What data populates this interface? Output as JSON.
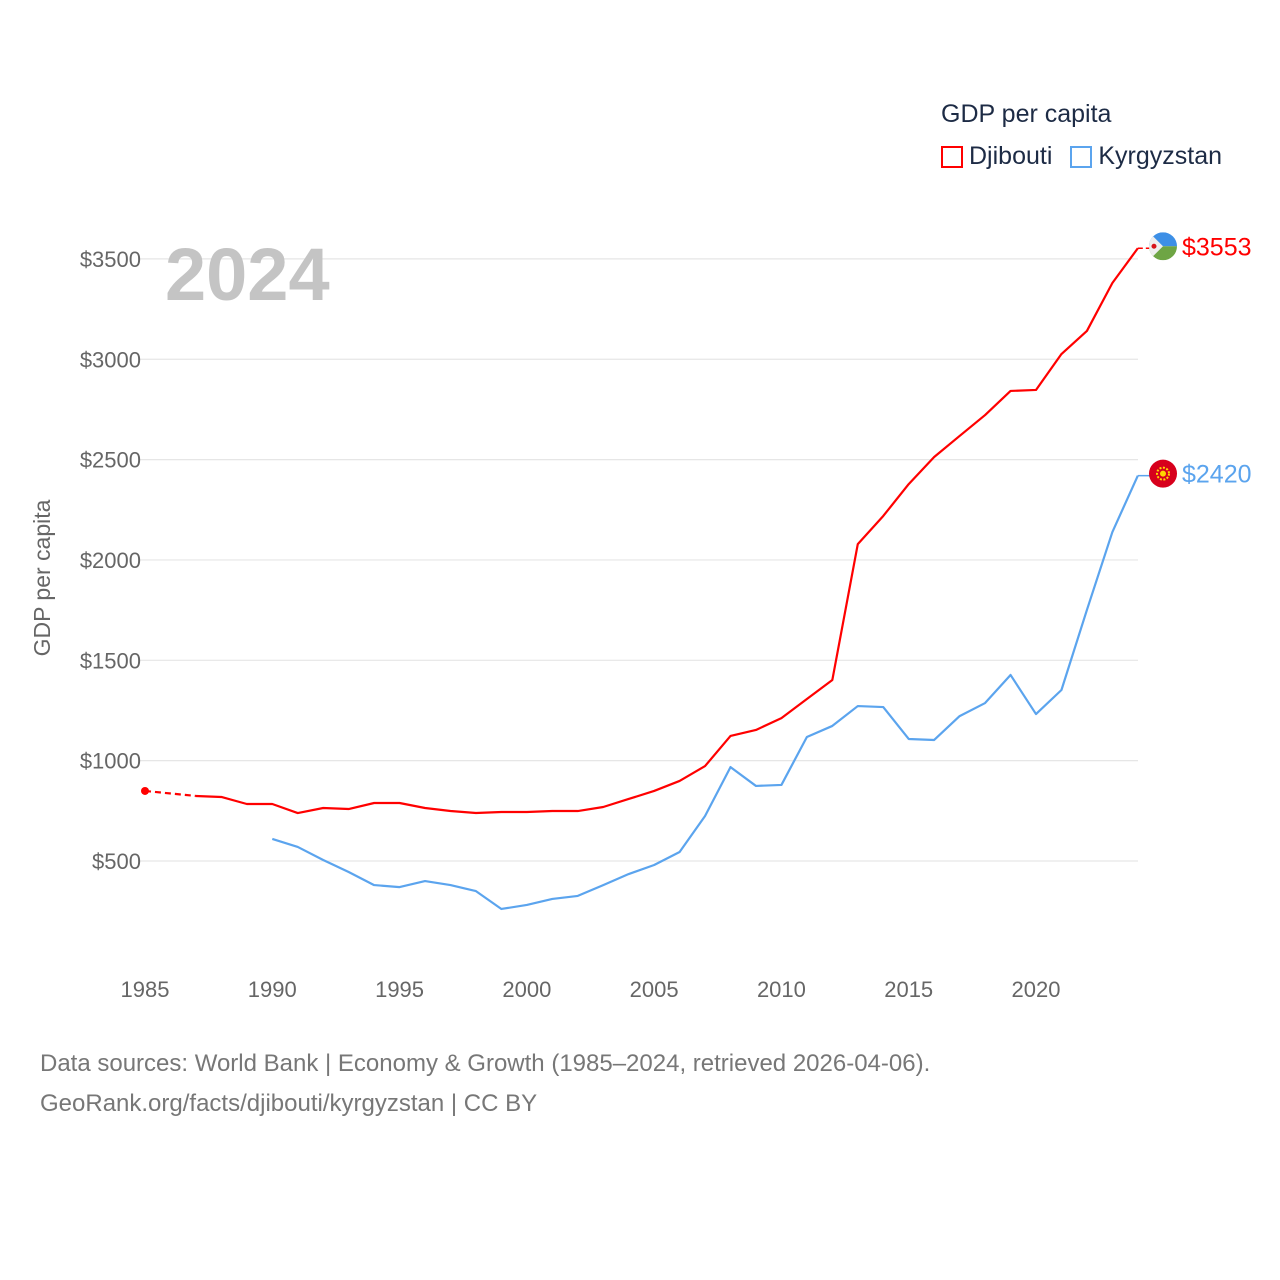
{
  "chart_data": {
    "type": "line",
    "title": "",
    "year_label": "2024",
    "legend_title": "GDP per capita",
    "legend_position": "top-right",
    "ylabel": "GDP per capita",
    "xlabel": "",
    "xlim": [
      1985,
      2024
    ],
    "ylim": [
      0,
      3600
    ],
    "grid": true,
    "x_ticks": [
      "1985",
      "1990",
      "1995",
      "2000",
      "2005",
      "2010",
      "2015",
      "2020"
    ],
    "y_ticks": [
      "$500",
      "$1000",
      "$1500",
      "$2000",
      "$2500",
      "$3000",
      "$3500"
    ],
    "y_tick_values": [
      500,
      1000,
      1500,
      2000,
      2500,
      3000,
      3500
    ],
    "x": [
      1985,
      1986,
      1987,
      1988,
      1989,
      1990,
      1991,
      1992,
      1993,
      1994,
      1995,
      1996,
      1997,
      1998,
      1999,
      2000,
      2001,
      2002,
      2003,
      2004,
      2005,
      2006,
      2007,
      2008,
      2009,
      2010,
      2011,
      2012,
      2013,
      2014,
      2015,
      2016,
      2017,
      2018,
      2019,
      2020,
      2021,
      2022,
      2023,
      2024
    ],
    "series": [
      {
        "name": "Djibouti",
        "color": "#ff0000",
        "end_label": "$3553",
        "flag": "djibouti-flag",
        "values": [
          849,
          null,
          824,
          819,
          784,
          784,
          739,
          764,
          759,
          789,
          789,
          764,
          749,
          739,
          744,
          744,
          749,
          749,
          769,
          809,
          849,
          899,
          973,
          1123,
          1153,
          1212,
          1307,
          1402,
          2079,
          2219,
          2378,
          2513,
          2618,
          2722,
          2842,
          2847,
          3026,
          3141,
          3380,
          3553
        ]
      },
      {
        "name": "Kyrgyzstan",
        "color": "#5ba4ee",
        "end_label": "$2420",
        "flag": "kyrgyzstan-flag",
        "values": [
          null,
          null,
          null,
          null,
          null,
          610,
          570,
          505,
          445,
          380,
          370,
          400,
          380,
          350,
          261,
          281,
          311,
          326,
          380,
          435,
          480,
          545,
          724,
          968,
          874,
          879,
          1118,
          1173,
          1272,
          1267,
          1108,
          1103,
          1222,
          1287,
          1427,
          1232,
          1352,
          1751,
          2139,
          2420
        ]
      }
    ]
  },
  "footer": {
    "line1": "Data sources: World Bank | Economy & Growth (1985–2024, retrieved 2026-04-06).",
    "line2": "GeoRank.org/facts/djibouti/kyrgyzstan | CC BY"
  }
}
